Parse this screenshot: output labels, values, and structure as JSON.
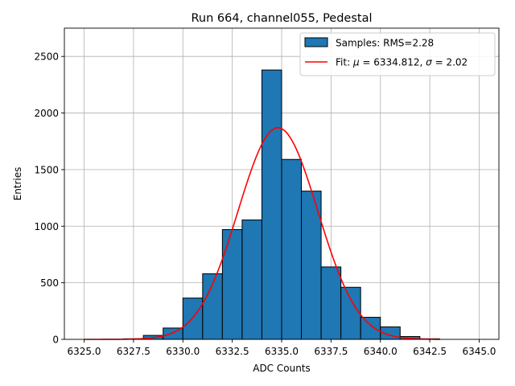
{
  "chart_data": {
    "type": "bar",
    "title": "Run 664, channel055, Pedestal",
    "xlabel": "ADC Counts",
    "ylabel": "Entries",
    "xlim": [
      6324.0,
      6346.0
    ],
    "ylim": [
      0,
      2750
    ],
    "xticks": [
      6325.0,
      6327.5,
      6330.0,
      6332.5,
      6335.0,
      6337.5,
      6340.0,
      6342.5,
      6345.0
    ],
    "xtick_labels": [
      "6325.0",
      "6327.5",
      "6330.0",
      "6332.5",
      "6335.0",
      "6337.5",
      "6340.0",
      "6342.5",
      "6345.0"
    ],
    "yticks": [
      0,
      500,
      1000,
      1500,
      2000,
      2500
    ],
    "ytick_labels": [
      "0",
      "500",
      "1000",
      "1500",
      "2000",
      "2500"
    ],
    "grid": true,
    "legend_position": "top-right",
    "histogram": {
      "name": "Samples: RMS=2.28",
      "color": "#1f77b4",
      "edge_color": "#000000",
      "bins": [
        {
          "x0": 6326.0,
          "x1": 6327.0,
          "count": 0
        },
        {
          "x0": 6327.0,
          "x1": 6328.0,
          "count": 5
        },
        {
          "x0": 6328.0,
          "x1": 6329.0,
          "count": 35
        },
        {
          "x0": 6329.0,
          "x1": 6330.0,
          "count": 100
        },
        {
          "x0": 6330.0,
          "x1": 6331.0,
          "count": 365
        },
        {
          "x0": 6331.0,
          "x1": 6332.0,
          "count": 580
        },
        {
          "x0": 6332.0,
          "x1": 6333.0,
          "count": 970
        },
        {
          "x0": 6333.0,
          "x1": 6334.0,
          "count": 1055
        },
        {
          "x0": 6334.0,
          "x1": 6335.0,
          "count": 2380
        },
        {
          "x0": 6335.0,
          "x1": 6336.0,
          "count": 1590
        },
        {
          "x0": 6336.0,
          "x1": 6337.0,
          "count": 1310
        },
        {
          "x0": 6337.0,
          "x1": 6338.0,
          "count": 640
        },
        {
          "x0": 6338.0,
          "x1": 6339.0,
          "count": 460
        },
        {
          "x0": 6339.0,
          "x1": 6340.0,
          "count": 195
        },
        {
          "x0": 6340.0,
          "x1": 6341.0,
          "count": 110
        },
        {
          "x0": 6341.0,
          "x1": 6342.0,
          "count": 25
        },
        {
          "x0": 6342.0,
          "x1": 6343.0,
          "count": 5
        }
      ]
    },
    "fit": {
      "name": "Fit: μ = 6334.812, σ = 2.02",
      "legend_prefix": "Fit: ",
      "legend_mu_symbol": "μ",
      "legend_mu_text": " = 6334.812, ",
      "legend_sigma_symbol": "σ",
      "legend_sigma_text": " = 2.02",
      "color": "#ff0000",
      "mu": 6334.812,
      "sigma": 2.02,
      "amplitude": 1870,
      "x_range": [
        6325.0,
        6343.0
      ]
    }
  }
}
